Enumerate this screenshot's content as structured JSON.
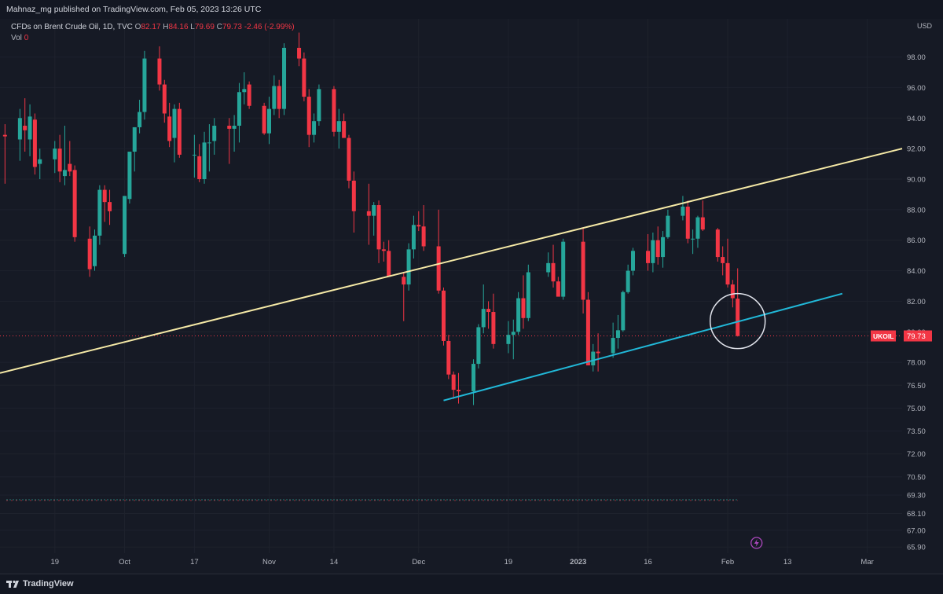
{
  "header": {
    "publisher_line": "Mahnaz_mg published on TradingView.com, Feb 05, 2023 13:26 UTC"
  },
  "legend": {
    "symbol": "CFDs on Brent Crude Oil, 1D, TVC",
    "o_label": "O",
    "o_value": "82.17",
    "h_label": "H",
    "h_value": "84.16",
    "l_label": "L",
    "l_value": "79.69",
    "c_label": "C",
    "c_value": "79.73",
    "change": "-2.46 (-2.99%)",
    "vol_label": "Vol",
    "vol_value": "0"
  },
  "axis": {
    "currency": "USD"
  },
  "price_tag": {
    "symbol": "UKOIL",
    "value": "79.73",
    "price": 79.73
  },
  "footer": {
    "brand": "TradingView"
  },
  "colors": {
    "background": "#161a25",
    "up": "#26a69a",
    "down": "#f23645",
    "upper_trendline": "#f5e9a6",
    "lower_trendline": "#21b8d8",
    "text": "#b2b5be"
  },
  "chart_data": {
    "type": "candlestick",
    "yaxis_ticks": [
      98.0,
      96.0,
      94.0,
      92.0,
      90.0,
      88.0,
      86.0,
      84.0,
      82.0,
      80.0,
      78.0,
      76.5,
      75.0,
      73.5,
      72.0,
      70.5,
      69.3,
      68.1,
      67.0,
      65.9
    ],
    "ylim": [
      65.5,
      100.5
    ],
    "xaxis_ticks": [
      "19",
      "Oct",
      "17",
      "Nov",
      "14",
      "Dec",
      "19",
      "2023",
      "16",
      "Feb",
      "13",
      "Mar"
    ],
    "xlim": [
      "2022-09-08",
      "2023-03-08"
    ],
    "candles": [
      {
        "d": "2022-09-09",
        "o": 92.9,
        "h": 93.6,
        "l": 89.7,
        "c": 92.8
      },
      {
        "d": "2022-09-12",
        "o": 92.6,
        "h": 94.6,
        "l": 91.2,
        "c": 94.0
      },
      {
        "d": "2022-09-13",
        "o": 93.5,
        "h": 95.3,
        "l": 91.8,
        "c": 93.2
      },
      {
        "d": "2022-09-14",
        "o": 92.6,
        "h": 94.9,
        "l": 91.5,
        "c": 94.1
      },
      {
        "d": "2022-09-15",
        "o": 93.9,
        "h": 94.3,
        "l": 90.3,
        "c": 90.8
      },
      {
        "d": "2022-09-16",
        "o": 91.0,
        "h": 92.0,
        "l": 90.0,
        "c": 91.3
      },
      {
        "d": "2022-09-19",
        "o": 91.3,
        "h": 92.5,
        "l": 90.4,
        "c": 92.0
      },
      {
        "d": "2022-09-20",
        "o": 92.0,
        "h": 92.9,
        "l": 89.8,
        "c": 90.5
      },
      {
        "d": "2022-09-21",
        "o": 90.2,
        "h": 93.5,
        "l": 89.6,
        "c": 90.6
      },
      {
        "d": "2022-09-22",
        "o": 91.0,
        "h": 92.5,
        "l": 90.2,
        "c": 90.5
      },
      {
        "d": "2022-09-23",
        "o": 90.6,
        "h": 90.9,
        "l": 85.9,
        "c": 86.2
      },
      {
        "d": "2022-09-26",
        "o": 86.1,
        "h": 86.9,
        "l": 83.6,
        "c": 84.1
      },
      {
        "d": "2022-09-27",
        "o": 84.3,
        "h": 86.7,
        "l": 84.0,
        "c": 86.3
      },
      {
        "d": "2022-09-28",
        "o": 86.3,
        "h": 89.6,
        "l": 85.7,
        "c": 89.3
      },
      {
        "d": "2022-09-29",
        "o": 89.3,
        "h": 89.6,
        "l": 87.2,
        "c": 88.5
      },
      {
        "d": "2022-09-30",
        "o": 88.5,
        "h": 89.3,
        "l": 87.0,
        "c": 87.9
      },
      {
        "d": "2022-10-03",
        "o": 85.1,
        "h": 88.9,
        "l": 84.9,
        "c": 88.9
      },
      {
        "d": "2022-10-04",
        "o": 88.7,
        "h": 91.7,
        "l": 88.4,
        "c": 91.8
      },
      {
        "d": "2022-10-05",
        "o": 91.8,
        "h": 93.4,
        "l": 90.5,
        "c": 93.4
      },
      {
        "d": "2022-10-06",
        "o": 93.4,
        "h": 95.2,
        "l": 93.0,
        "c": 94.4
      },
      {
        "d": "2022-10-07",
        "o": 94.4,
        "h": 98.4,
        "l": 93.9,
        "c": 97.9
      },
      {
        "d": "2022-10-10",
        "o": 97.9,
        "h": 98.7,
        "l": 95.8,
        "c": 96.2
      },
      {
        "d": "2022-10-11",
        "o": 96.2,
        "h": 96.5,
        "l": 93.7,
        "c": 94.3
      },
      {
        "d": "2022-10-12",
        "o": 94.1,
        "h": 95.0,
        "l": 92.1,
        "c": 92.5
      },
      {
        "d": "2022-10-13",
        "o": 92.7,
        "h": 94.9,
        "l": 91.1,
        "c": 94.6
      },
      {
        "d": "2022-10-14",
        "o": 94.6,
        "h": 95.0,
        "l": 91.4,
        "c": 91.6
      },
      {
        "d": "2022-10-17",
        "o": 91.6,
        "h": 92.9,
        "l": 90.1,
        "c": 91.6
      },
      {
        "d": "2022-10-18",
        "o": 91.5,
        "h": 92.3,
        "l": 89.8,
        "c": 90.0
      },
      {
        "d": "2022-10-19",
        "o": 90.0,
        "h": 93.1,
        "l": 89.7,
        "c": 92.4
      },
      {
        "d": "2022-10-20",
        "o": 92.4,
        "h": 93.6,
        "l": 90.5,
        "c": 92.4
      },
      {
        "d": "2022-10-21",
        "o": 92.5,
        "h": 94.0,
        "l": 91.6,
        "c": 93.5
      },
      {
        "d": "2022-10-24",
        "o": 93.5,
        "h": 94.0,
        "l": 91.0,
        "c": 93.3
      },
      {
        "d": "2022-10-25",
        "o": 93.3,
        "h": 94.2,
        "l": 91.8,
        "c": 93.5
      },
      {
        "d": "2022-10-26",
        "o": 93.5,
        "h": 96.3,
        "l": 92.4,
        "c": 95.7
      },
      {
        "d": "2022-10-27",
        "o": 95.7,
        "h": 97.0,
        "l": 94.9,
        "c": 95.9
      },
      {
        "d": "2022-10-28",
        "o": 96.2,
        "h": 96.4,
        "l": 94.6,
        "c": 94.8
      },
      {
        "d": "2022-10-31",
        "o": 94.8,
        "h": 95.0,
        "l": 92.9,
        "c": 93.0
      },
      {
        "d": "2022-11-01",
        "o": 93.0,
        "h": 95.4,
        "l": 92.3,
        "c": 94.6
      },
      {
        "d": "2022-11-02",
        "o": 94.6,
        "h": 96.8,
        "l": 94.2,
        "c": 96.1
      },
      {
        "d": "2022-11-03",
        "o": 96.1,
        "h": 96.5,
        "l": 94.0,
        "c": 94.6
      },
      {
        "d": "2022-11-04",
        "o": 94.6,
        "h": 98.9,
        "l": 94.2,
        "c": 98.6
      },
      {
        "d": "2022-11-07",
        "o": 98.6,
        "h": 99.6,
        "l": 97.4,
        "c": 97.9
      },
      {
        "d": "2022-11-08",
        "o": 97.9,
        "h": 98.3,
        "l": 95.1,
        "c": 95.4
      },
      {
        "d": "2022-11-09",
        "o": 95.4,
        "h": 95.9,
        "l": 92.1,
        "c": 92.9
      },
      {
        "d": "2022-11-10",
        "o": 92.9,
        "h": 94.3,
        "l": 92.4,
        "c": 93.8
      },
      {
        "d": "2022-11-11",
        "o": 93.8,
        "h": 96.2,
        "l": 93.5,
        "c": 95.9
      },
      {
        "d": "2022-11-14",
        "o": 95.9,
        "h": 96.1,
        "l": 92.8,
        "c": 93.1
      },
      {
        "d": "2022-11-15",
        "o": 93.1,
        "h": 94.6,
        "l": 92.0,
        "c": 93.8
      },
      {
        "d": "2022-11-16",
        "o": 93.8,
        "h": 94.3,
        "l": 92.7,
        "c": 92.7
      },
      {
        "d": "2022-11-17",
        "o": 92.7,
        "h": 92.9,
        "l": 89.4,
        "c": 89.9
      },
      {
        "d": "2022-11-18",
        "o": 89.9,
        "h": 90.5,
        "l": 86.5,
        "c": 87.9
      },
      {
        "d": "2022-11-21",
        "o": 87.9,
        "h": 89.7,
        "l": 85.7,
        "c": 87.6
      },
      {
        "d": "2022-11-22",
        "o": 87.6,
        "h": 88.5,
        "l": 86.3,
        "c": 88.3
      },
      {
        "d": "2022-11-23",
        "o": 88.3,
        "h": 88.6,
        "l": 84.5,
        "c": 85.4
      },
      {
        "d": "2022-11-24",
        "o": 85.4,
        "h": 85.9,
        "l": 84.6,
        "c": 85.3
      },
      {
        "d": "2022-11-25",
        "o": 85.3,
        "h": 86.0,
        "l": 83.6,
        "c": 83.6
      },
      {
        "d": "2022-11-28",
        "o": 83.6,
        "h": 83.9,
        "l": 80.7,
        "c": 83.1
      },
      {
        "d": "2022-11-29",
        "o": 83.1,
        "h": 85.8,
        "l": 82.7,
        "c": 85.4
      },
      {
        "d": "2022-11-30",
        "o": 85.4,
        "h": 87.6,
        "l": 84.8,
        "c": 87.0
      },
      {
        "d": "2022-12-01",
        "o": 87.0,
        "h": 87.9,
        "l": 86.6,
        "c": 86.9
      },
      {
        "d": "2022-12-02",
        "o": 86.9,
        "h": 88.3,
        "l": 85.3,
        "c": 85.6
      },
      {
        "d": "2022-12-05",
        "o": 85.6,
        "h": 88.0,
        "l": 82.5,
        "c": 82.7
      },
      {
        "d": "2022-12-06",
        "o": 82.7,
        "h": 82.9,
        "l": 79.1,
        "c": 79.4
      },
      {
        "d": "2022-12-07",
        "o": 79.4,
        "h": 79.8,
        "l": 76.9,
        "c": 77.2
      },
      {
        "d": "2022-12-08",
        "o": 77.2,
        "h": 77.4,
        "l": 75.6,
        "c": 76.2
      },
      {
        "d": "2022-12-09",
        "o": 76.2,
        "h": 77.3,
        "l": 75.3,
        "c": 76.1
      },
      {
        "d": "2022-12-12",
        "o": 76.1,
        "h": 78.2,
        "l": 75.2,
        "c": 77.9
      },
      {
        "d": "2022-12-13",
        "o": 77.9,
        "h": 80.5,
        "l": 77.6,
        "c": 80.3
      },
      {
        "d": "2022-12-14",
        "o": 80.3,
        "h": 83.1,
        "l": 79.9,
        "c": 81.5
      },
      {
        "d": "2022-12-15",
        "o": 81.5,
        "h": 82.0,
        "l": 80.2,
        "c": 81.3
      },
      {
        "d": "2022-12-16",
        "o": 81.3,
        "h": 82.5,
        "l": 78.9,
        "c": 79.2
      },
      {
        "d": "2022-12-19",
        "o": 79.2,
        "h": 80.7,
        "l": 78.6,
        "c": 79.8
      },
      {
        "d": "2022-12-20",
        "o": 79.8,
        "h": 80.8,
        "l": 78.2,
        "c": 80.0
      },
      {
        "d": "2022-12-21",
        "o": 80.0,
        "h": 82.6,
        "l": 79.8,
        "c": 82.2
      },
      {
        "d": "2022-12-22",
        "o": 82.2,
        "h": 83.7,
        "l": 80.2,
        "c": 80.9
      },
      {
        "d": "2022-12-23",
        "o": 80.9,
        "h": 84.4,
        "l": 80.7,
        "c": 83.9
      },
      {
        "d": "2022-12-27",
        "o": 83.9,
        "h": 85.2,
        "l": 83.6,
        "c": 84.5
      },
      {
        "d": "2022-12-28",
        "o": 84.5,
        "h": 85.7,
        "l": 82.9,
        "c": 83.3
      },
      {
        "d": "2022-12-29",
        "o": 83.3,
        "h": 83.6,
        "l": 82.4,
        "c": 82.3
      },
      {
        "d": "2022-12-30",
        "o": 82.3,
        "h": 86.1,
        "l": 82.1,
        "c": 85.9
      },
      {
        "d": "2023-01-03",
        "o": 85.9,
        "h": 86.8,
        "l": 81.2,
        "c": 82.1
      },
      {
        "d": "2023-01-04",
        "o": 82.1,
        "h": 82.6,
        "l": 77.8,
        "c": 77.8
      },
      {
        "d": "2023-01-05",
        "o": 77.8,
        "h": 79.2,
        "l": 77.4,
        "c": 78.7
      },
      {
        "d": "2023-01-06",
        "o": 78.7,
        "h": 79.9,
        "l": 77.4,
        "c": 78.6
      },
      {
        "d": "2023-01-09",
        "o": 78.6,
        "h": 80.6,
        "l": 78.3,
        "c": 79.6
      },
      {
        "d": "2023-01-10",
        "o": 79.6,
        "h": 81.1,
        "l": 78.9,
        "c": 80.1
      },
      {
        "d": "2023-01-11",
        "o": 80.1,
        "h": 82.7,
        "l": 80.0,
        "c": 82.6
      },
      {
        "d": "2023-01-12",
        "o": 82.6,
        "h": 84.4,
        "l": 82.5,
        "c": 84.0
      },
      {
        "d": "2023-01-13",
        "o": 84.0,
        "h": 85.5,
        "l": 83.7,
        "c": 85.3
      },
      {
        "d": "2023-01-16",
        "o": 85.3,
        "h": 86.4,
        "l": 84.0,
        "c": 84.5
      },
      {
        "d": "2023-01-17",
        "o": 84.5,
        "h": 86.5,
        "l": 83.9,
        "c": 86.0
      },
      {
        "d": "2023-01-18",
        "o": 86.0,
        "h": 86.9,
        "l": 84.4,
        "c": 84.9
      },
      {
        "d": "2023-01-19",
        "o": 84.9,
        "h": 86.6,
        "l": 84.2,
        "c": 86.2
      },
      {
        "d": "2023-01-20",
        "o": 86.2,
        "h": 88.0,
        "l": 86.1,
        "c": 87.6
      },
      {
        "d": "2023-01-23",
        "o": 87.6,
        "h": 88.9,
        "l": 87.3,
        "c": 88.2
      },
      {
        "d": "2023-01-24",
        "o": 88.2,
        "h": 88.6,
        "l": 85.8,
        "c": 86.1
      },
      {
        "d": "2023-01-25",
        "o": 86.1,
        "h": 86.7,
        "l": 85.1,
        "c": 86.1
      },
      {
        "d": "2023-01-26",
        "o": 86.1,
        "h": 87.6,
        "l": 85.5,
        "c": 87.5
      },
      {
        "d": "2023-01-27",
        "o": 87.5,
        "h": 88.6,
        "l": 86.6,
        "c": 86.7
      },
      {
        "d": "2023-01-30",
        "o": 86.7,
        "h": 86.8,
        "l": 84.6,
        "c": 84.9
      },
      {
        "d": "2023-01-31",
        "o": 84.9,
        "h": 85.6,
        "l": 83.7,
        "c": 84.5
      },
      {
        "d": "2023-02-01",
        "o": 84.5,
        "h": 86.1,
        "l": 82.9,
        "c": 83.1
      },
      {
        "d": "2023-02-02",
        "o": 83.1,
        "h": 83.4,
        "l": 81.6,
        "c": 82.2
      },
      {
        "d": "2023-02-03",
        "o": 82.17,
        "h": 84.16,
        "l": 79.69,
        "c": 79.73
      }
    ],
    "upper_trendline": [
      {
        "d": "2022-09-08",
        "p": 77.3
      },
      {
        "d": "2023-03-08",
        "p": 92.0
      }
    ],
    "lower_trendline": [
      {
        "d": "2022-12-06",
        "p": 75.5
      },
      {
        "d": "2023-02-24",
        "p": 82.5
      }
    ],
    "highlight_circle": {
      "d": "2023-02-03",
      "p": 80.7
    },
    "last_price_line": 79.73,
    "dashed_level": 69.0
  }
}
